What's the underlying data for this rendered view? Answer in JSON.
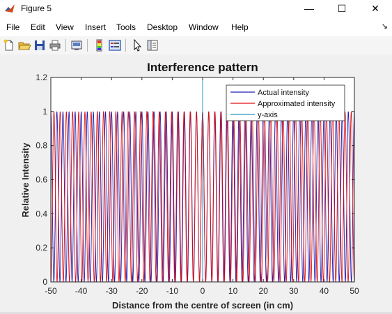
{
  "window": {
    "title": "Figure 5",
    "controls": {
      "minimize": "—",
      "maximize": "☐",
      "close": "✕"
    }
  },
  "menu": {
    "items": [
      "File",
      "Edit",
      "View",
      "Insert",
      "Tools",
      "Desktop",
      "Window",
      "Help"
    ],
    "arrow": "↘"
  },
  "toolbar": {
    "icons": [
      "new-figure-icon",
      "open-file-icon",
      "save-icon",
      "print-icon",
      "link-plot-icon",
      "insert-colorbar-icon",
      "insert-legend-icon",
      "edit-plot-arrow-icon",
      "property-inspector-icon"
    ]
  },
  "colors": {
    "actual": "#1f1fb4",
    "approx": "#e01010",
    "yaxis": "#2a93c8"
  },
  "chart_data": {
    "type": "line",
    "title": "Interference pattern",
    "xlabel": "Distance from the centre of screen (in cm)",
    "ylabel": "Relative Intensity",
    "xlim": [
      -50,
      50
    ],
    "ylim": [
      0,
      1.2
    ],
    "xticks": [
      -50,
      -40,
      -30,
      -20,
      -10,
      0,
      10,
      20,
      30,
      40,
      50
    ],
    "yticks": [
      0,
      0.2,
      0.4,
      0.6,
      0.8,
      1,
      1.2
    ],
    "legend_position": "top-right",
    "grid": false,
    "series": [
      {
        "name": "Actual intensity",
        "function": "cos^2",
        "period_cm": 2.0,
        "peak": 1,
        "x_range": [
          -50,
          50
        ]
      },
      {
        "name": "Approximated intensity",
        "function": "cos^2",
        "period_cm": 2.04,
        "peak": 1,
        "x_range": [
          -50,
          50
        ]
      },
      {
        "name": "y-axis",
        "x": [
          0,
          0
        ],
        "y": [
          0,
          1.2
        ]
      }
    ]
  }
}
